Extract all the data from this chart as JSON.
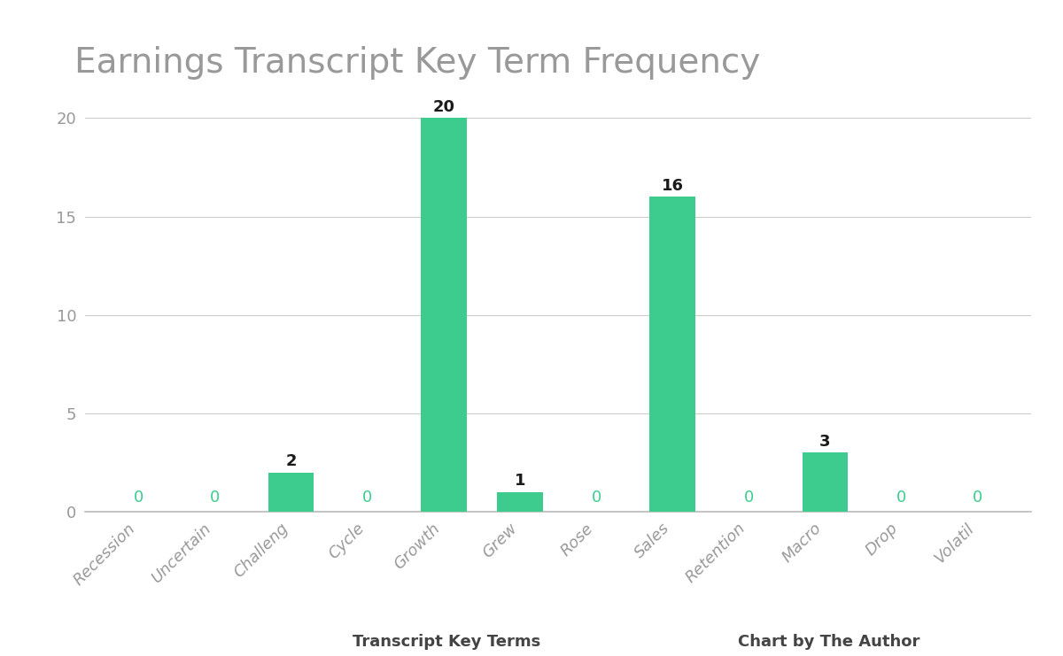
{
  "title": "Earnings Transcript Key Term Frequency",
  "categories": [
    "Recession",
    "Uncertain",
    "Challeng",
    "Cycle",
    "Growth",
    "Grew",
    "Rose",
    "Sales",
    "Retention",
    "Macro",
    "Drop",
    "Volatil"
  ],
  "values": [
    0,
    0,
    2,
    0,
    20,
    1,
    0,
    16,
    0,
    3,
    0,
    0
  ],
  "bar_color": "#3dcc8e",
  "zero_label_color": "#3dcc8e",
  "nonzero_label_color": "#1a1a1a",
  "xlabel": "Transcript Key Terms",
  "xlabel_right": "Chart by The Author",
  "ylabel": "",
  "ylim": [
    0,
    22
  ],
  "yticks": [
    0,
    5,
    10,
    15,
    20
  ],
  "background_color": "#ffffff",
  "grid_color": "#cccccc",
  "title_fontsize": 28,
  "label_fontsize": 13,
  "tick_fontsize": 13,
  "xlabel_fontsize": 13,
  "title_color": "#999999",
  "tick_color": "#999999"
}
